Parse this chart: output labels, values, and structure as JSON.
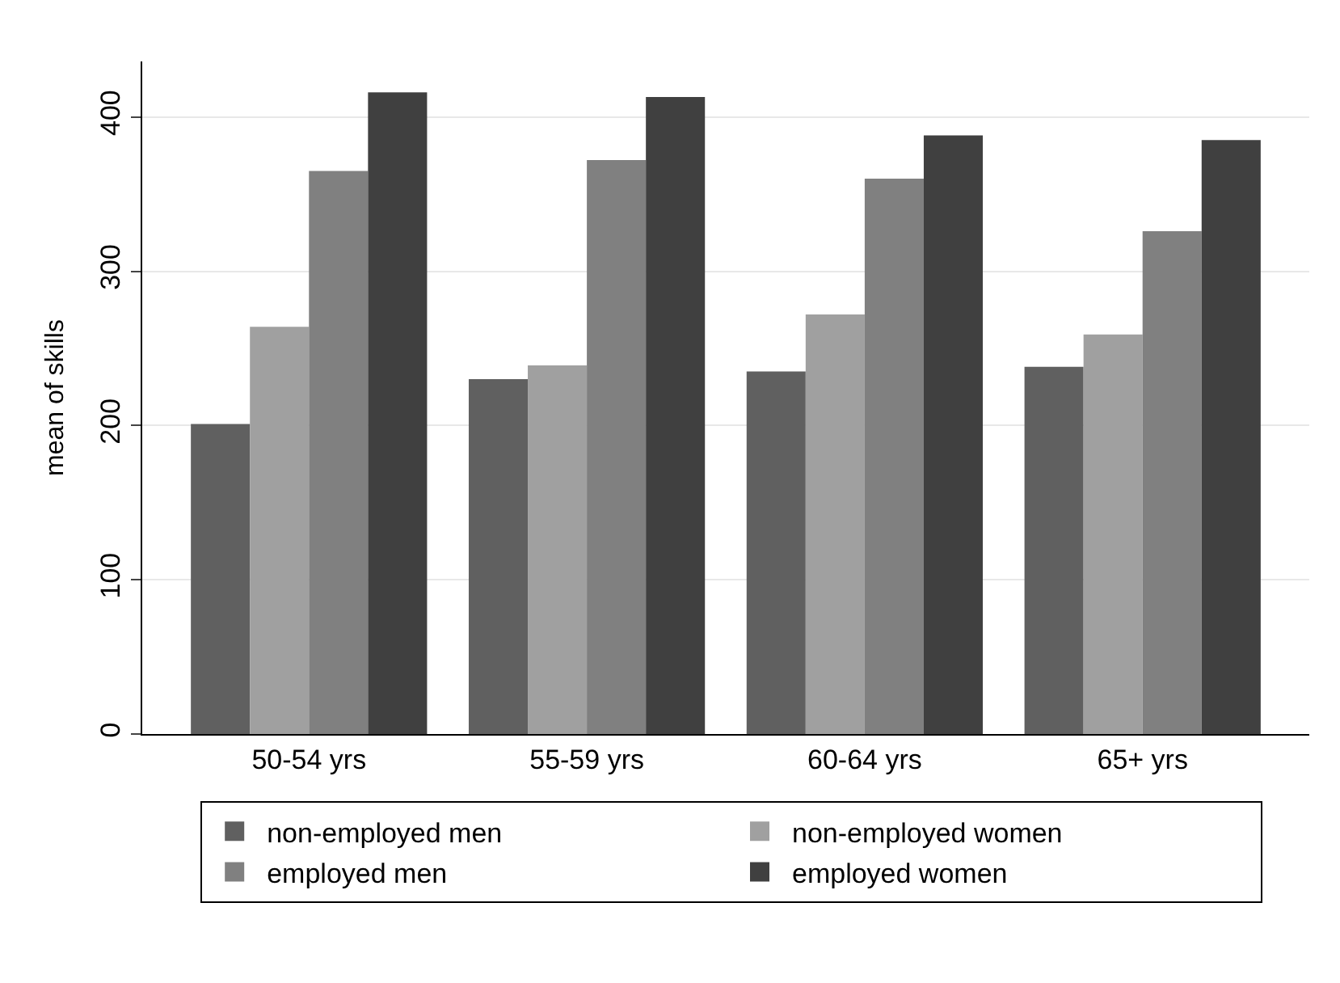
{
  "chart_data": {
    "type": "bar",
    "ylabel": "mean of skills",
    "categories": [
      "50-54 yrs",
      "55-59 yrs",
      "60-64 yrs",
      "65+ yrs"
    ],
    "series": [
      {
        "name": "non-employed men",
        "color": "#606060",
        "values": [
          201,
          230,
          235,
          238
        ]
      },
      {
        "name": "non-employed women",
        "color": "#a0a0a0",
        "values": [
          264,
          239,
          272,
          259
        ]
      },
      {
        "name": "employed men",
        "color": "#808080",
        "values": [
          365,
          372,
          360,
          326
        ]
      },
      {
        "name": "employed women",
        "color": "#404040",
        "values": [
          416,
          413,
          388,
          385
        ]
      }
    ],
    "ylim": [
      0,
      436
    ],
    "yticks": [
      0,
      100,
      200,
      300,
      400
    ],
    "grid": "y",
    "legend": "bottom"
  }
}
